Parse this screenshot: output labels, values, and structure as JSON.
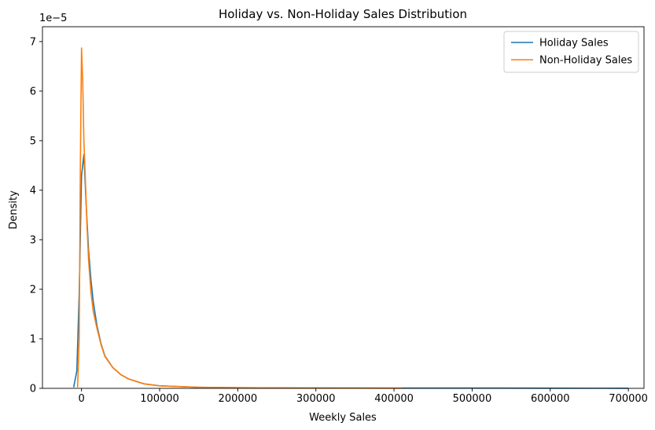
{
  "chart_data": {
    "type": "line",
    "title": "Holiday vs. Non-Holiday Sales Distribution",
    "xlabel": "Weekly Sales",
    "ylabel": "Density",
    "y_offset_label": "1e−5",
    "xlim": [
      -50000,
      720000
    ],
    "ylim": [
      0,
      7.3
    ],
    "x_ticks": [
      0,
      100000,
      200000,
      300000,
      400000,
      500000,
      600000,
      700000
    ],
    "y_ticks": [
      0,
      1,
      2,
      3,
      4,
      5,
      6,
      7
    ],
    "grid": false,
    "legend_position": "top-right",
    "series": [
      {
        "name": "Holiday Sales",
        "color": "#1f77b4",
        "x": [
          -10000,
          -6000,
          -3000,
          0,
          3000,
          6000,
          9000,
          12000,
          15000,
          20000,
          25000,
          30000,
          40000,
          50000,
          60000,
          80000,
          100000,
          150000,
          200000,
          300000,
          400000,
          500000,
          600000,
          700000
        ],
        "y": [
          0.02,
          0.35,
          1.9,
          4.3,
          4.72,
          3.7,
          2.8,
          2.2,
          1.75,
          1.25,
          0.9,
          0.65,
          0.42,
          0.28,
          0.19,
          0.09,
          0.05,
          0.02,
          0.012,
          0.007,
          0.005,
          0.004,
          0.003,
          0.002
        ]
      },
      {
        "name": "Non-Holiday Sales",
        "color": "#ff7f0e",
        "x": [
          -5000,
          -3000,
          -1500,
          0,
          1500,
          3000,
          5000,
          7000,
          9000,
          12000,
          15000,
          20000,
          25000,
          30000,
          40000,
          50000,
          60000,
          80000,
          100000,
          150000,
          200000,
          300000,
          410000
        ],
        "y": [
          0.02,
          1.0,
          4.5,
          6.87,
          6.2,
          5.0,
          4.2,
          3.3,
          2.6,
          1.95,
          1.55,
          1.2,
          0.88,
          0.64,
          0.42,
          0.28,
          0.19,
          0.09,
          0.05,
          0.02,
          0.012,
          0.006,
          0.003
        ]
      }
    ]
  }
}
